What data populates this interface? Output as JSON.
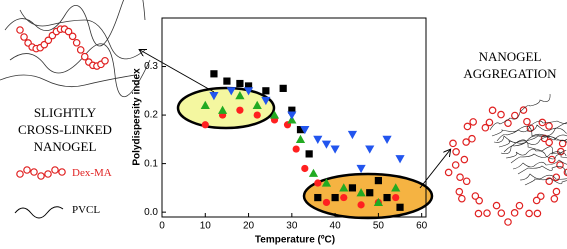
{
  "chart_data": {
    "type": "scatter",
    "x_label": "Temperature (ºC)",
    "y_label": "Polydispersity index",
    "xlim": [
      0,
      61
    ],
    "ylim": [
      -0.01,
      0.4
    ],
    "xticks": [
      0,
      10,
      20,
      30,
      40,
      50,
      60
    ],
    "yticks": [
      {
        "value": 0,
        "label": "0.0"
      },
      0.1,
      0.2,
      0.3
    ],
    "series": [
      {
        "color": "#000000",
        "marker": "square",
        "x": [
          12,
          15,
          18,
          20,
          24,
          28,
          30,
          32,
          34,
          36,
          40,
          44,
          48,
          50,
          52,
          55
        ],
        "values": [
          0.285,
          0.27,
          0.265,
          0.26,
          0.25,
          0.255,
          0.21,
          0.17,
          0.12,
          0.03,
          0.03,
          0.05,
          0.04,
          0.065,
          0.03,
          0.01
        ]
      },
      {
        "color": "#ff2020",
        "marker": "circle",
        "x": [
          10,
          14,
          18,
          22,
          26,
          29,
          31,
          33,
          36,
          38,
          42,
          46,
          50,
          54
        ],
        "values": [
          0.18,
          0.2,
          0.21,
          0.2,
          0.19,
          0.18,
          0.13,
          0.09,
          0.06,
          0.02,
          0.03,
          0.015,
          0.02,
          0.03
        ]
      },
      {
        "color": "#22aa22",
        "marker": "triangle",
        "x": [
          10,
          14,
          18,
          22,
          26,
          30,
          32,
          35,
          38,
          42,
          46,
          50,
          54
        ],
        "values": [
          0.22,
          0.21,
          0.24,
          0.22,
          0.2,
          0.19,
          0.15,
          0.08,
          0.06,
          0.05,
          0.04,
          0.02,
          0.05
        ]
      },
      {
        "color": "#2255ee",
        "marker": "down-triangle",
        "x": [
          12,
          16,
          20,
          24,
          30,
          33,
          36,
          38,
          40,
          44,
          46,
          48,
          52,
          55
        ],
        "values": [
          0.24,
          0.25,
          0.25,
          0.23,
          0.2,
          0.17,
          0.15,
          0.14,
          0.13,
          0.16,
          0.09,
          0.13,
          0.15,
          0.11
        ]
      }
    ],
    "annotations": {
      "left": [
        "SLIGHTLY",
        "CROSS-LINKED",
        "NANOGEL"
      ],
      "right": [
        "NANOGEL",
        "AGGREGATION"
      ],
      "dexma": "Dex-MA",
      "pvcl": "PVCL"
    }
  }
}
